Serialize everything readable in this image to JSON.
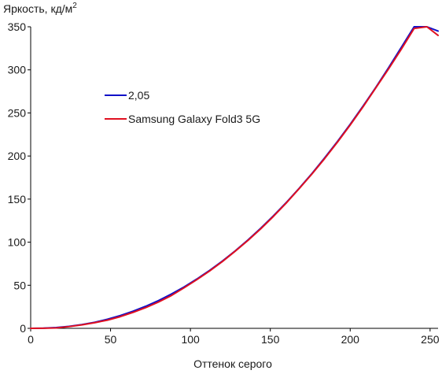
{
  "chart_data": {
    "type": "line",
    "title": "",
    "ylabel_base": "Яркость, кд/м",
    "ylabel_sup": "2",
    "xlabel": "Оттенок серого",
    "xlim": [
      0,
      255
    ],
    "ylim": [
      0,
      350
    ],
    "xticks": [
      0,
      50,
      100,
      150,
      200,
      250
    ],
    "yticks": [
      0,
      50,
      100,
      150,
      200,
      250,
      300,
      350
    ],
    "grid": false,
    "legend_position": "top-left",
    "series": [
      {
        "name": "2,05",
        "color": "#1010c8",
        "x": [
          0,
          8,
          16,
          24,
          32,
          40,
          48,
          56,
          64,
          72,
          80,
          88,
          96,
          104,
          112,
          120,
          128,
          136,
          144,
          152,
          160,
          168,
          176,
          184,
          192,
          200,
          208,
          216,
          224,
          232,
          240,
          248,
          255
        ],
        "y": [
          0,
          0.2,
          0.9,
          2.3,
          4.3,
          7.0,
          10.5,
          14.8,
          19.8,
          25.6,
          32.2,
          39.7,
          48.0,
          57.2,
          67.2,
          78.1,
          89.9,
          102.6,
          116.2,
          130.7,
          146.0,
          162.4,
          179.6,
          197.8,
          216.8,
          236.8,
          257.8,
          279.6,
          302.4,
          326.1,
          350.8,
          376.4,
          345
        ]
      },
      {
        "name": "Samsung Galaxy Fold3 5G",
        "color": "#e01020",
        "x": [
          0,
          8,
          16,
          24,
          32,
          40,
          48,
          56,
          64,
          72,
          80,
          88,
          96,
          104,
          112,
          120,
          128,
          136,
          144,
          152,
          160,
          168,
          176,
          184,
          192,
          200,
          208,
          216,
          224,
          232,
          240,
          248,
          255
        ],
        "y": [
          0,
          0.1,
          0.5,
          2.0,
          4.0,
          6.5,
          9.5,
          13.5,
          18.5,
          24.0,
          30.5,
          38.0,
          47.0,
          56.5,
          66.5,
          77.5,
          89.5,
          102.0,
          115.5,
          130.0,
          145.5,
          162.0,
          179.0,
          197.0,
          216.0,
          236.0,
          257.0,
          279.0,
          301.0,
          324.0,
          348.0,
          372.0,
          340
        ]
      }
    ]
  }
}
